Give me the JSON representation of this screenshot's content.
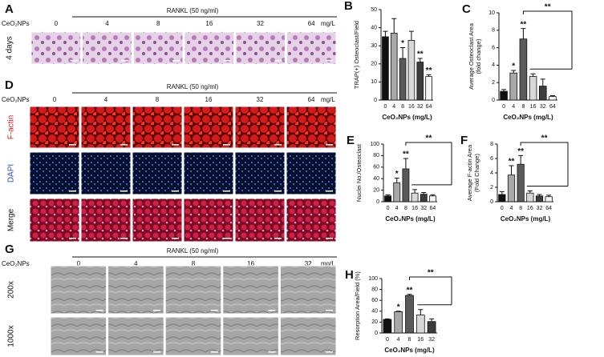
{
  "image_panels": {
    "A": {
      "label": "A",
      "treatment": "RANKL (50 ng/ml)",
      "dose_title": "CeO₂NPs",
      "doses": [
        "0",
        "4",
        "8",
        "16",
        "32",
        "64"
      ],
      "unit": "mg/L",
      "rows": [
        "4 days"
      ]
    },
    "D": {
      "label": "D",
      "treatment": "RANKL (50 ng/ml)",
      "dose_title": "CeO₂NPs",
      "doses": [
        "0",
        "4",
        "8",
        "16",
        "32",
        "64"
      ],
      "unit": "mg/L",
      "rows": [
        "F-actin",
        "DAPI",
        "Merge"
      ]
    },
    "G": {
      "label": "G",
      "treatment": "RANKL (50 ng/ml)",
      "dose_title": "CeO₂NPs",
      "doses": [
        "0",
        "4",
        "8",
        "16",
        "32"
      ],
      "unit": "mg/L",
      "rows": [
        "200x",
        "1000x"
      ]
    }
  },
  "chart_data": [
    {
      "type": "bar",
      "label": "B",
      "ylabel": [
        "TRAP(+) Osteoclast/Field"
      ],
      "xlabel": "CeO₂NPs (mg/L)",
      "categories": [
        "0",
        "4",
        "8",
        "16",
        "32",
        "64"
      ],
      "values": [
        35,
        37,
        23,
        33,
        21,
        13
      ],
      "errors": [
        3,
        8,
        6,
        5,
        2,
        1
      ],
      "colors": [
        "#111111",
        "#a8a8a8",
        "#5a5a5a",
        "#d8d8d8",
        "#3c3c3c",
        "#f4f4f4"
      ],
      "significance": [
        null,
        null,
        "*",
        null,
        "**",
        "**"
      ],
      "ylim": [
        0,
        50
      ],
      "yticks": [
        0,
        10,
        20,
        30,
        40,
        50
      ]
    },
    {
      "type": "bar",
      "label": "C",
      "ylabel": [
        "Average Osteoclast Area",
        "(fold change)"
      ],
      "xlabel": "CeO₂NPs (mg/L)",
      "categories": [
        "0",
        "4",
        "8",
        "16",
        "32",
        "64"
      ],
      "values": [
        1.0,
        3.1,
        7.0,
        2.7,
        1.6,
        0.4
      ],
      "errors": [
        0.2,
        0.3,
        1.2,
        0.3,
        0.8,
        0.1
      ],
      "colors": [
        "#111111",
        "#a8a8a8",
        "#5a5a5a",
        "#d8d8d8",
        "#3c3c3c",
        "#f4f4f4"
      ],
      "significance": [
        null,
        "*",
        "**",
        null,
        null,
        null
      ],
      "bracket_label": "**",
      "ylim": [
        0,
        10
      ],
      "yticks": [
        0,
        2,
        4,
        6,
        8,
        10
      ]
    },
    {
      "type": "bar",
      "label": "E",
      "ylabel": [
        "Nuclei No./Osteoclast"
      ],
      "xlabel": "CeO₂NPs (mg/L)",
      "categories": [
        "0",
        "4",
        "8",
        "16",
        "32",
        "64"
      ],
      "values": [
        10,
        33,
        57,
        15,
        13,
        10
      ],
      "errors": [
        2,
        8,
        18,
        6,
        3,
        2
      ],
      "colors": [
        "#111111",
        "#a8a8a8",
        "#5a5a5a",
        "#d8d8d8",
        "#3c3c3c",
        "#f4f4f4"
      ],
      "significance": [
        null,
        "*",
        "**",
        null,
        null,
        null
      ],
      "bracket_label": "**",
      "ylim": [
        0,
        100
      ],
      "yticks": [
        0,
        20,
        40,
        60,
        80,
        100
      ]
    },
    {
      "type": "bar",
      "label": "F",
      "ylabel": [
        "Average F-actin Area",
        "(Fold Change)"
      ],
      "xlabel": "CeO₂NPs (mg/L)",
      "categories": [
        "0",
        "4",
        "8",
        "16",
        "32",
        "64"
      ],
      "values": [
        1.0,
        3.7,
        5.2,
        1.2,
        0.8,
        0.7
      ],
      "errors": [
        0.4,
        1.3,
        1.2,
        0.3,
        0.2,
        0.2
      ],
      "colors": [
        "#111111",
        "#a8a8a8",
        "#5a5a5a",
        "#d8d8d8",
        "#3c3c3c",
        "#f4f4f4"
      ],
      "significance": [
        null,
        "**",
        "**",
        null,
        null,
        null
      ],
      "bracket_label": "**",
      "ylim": [
        0,
        8
      ],
      "yticks": [
        0,
        2,
        4,
        6,
        8
      ]
    },
    {
      "type": "bar",
      "label": "H",
      "ylabel": [
        "Resorption Area/Field (%)"
      ],
      "xlabel": "CeO₂NPs (mg/L)",
      "categories": [
        "0",
        "4",
        "8",
        "16",
        "32"
      ],
      "values": [
        25,
        39,
        69,
        33,
        21
      ],
      "errors": [
        1,
        1,
        2,
        10,
        5
      ],
      "colors": [
        "#111111",
        "#a8a8a8",
        "#5a5a5a",
        "#d8d8d8",
        "#3c3c3c"
      ],
      "significance": [
        null,
        "*",
        "**",
        null,
        null
      ],
      "bracket_label": "**",
      "ylim": [
        0,
        100
      ],
      "yticks": [
        0,
        20,
        40,
        60,
        80,
        100
      ]
    }
  ]
}
